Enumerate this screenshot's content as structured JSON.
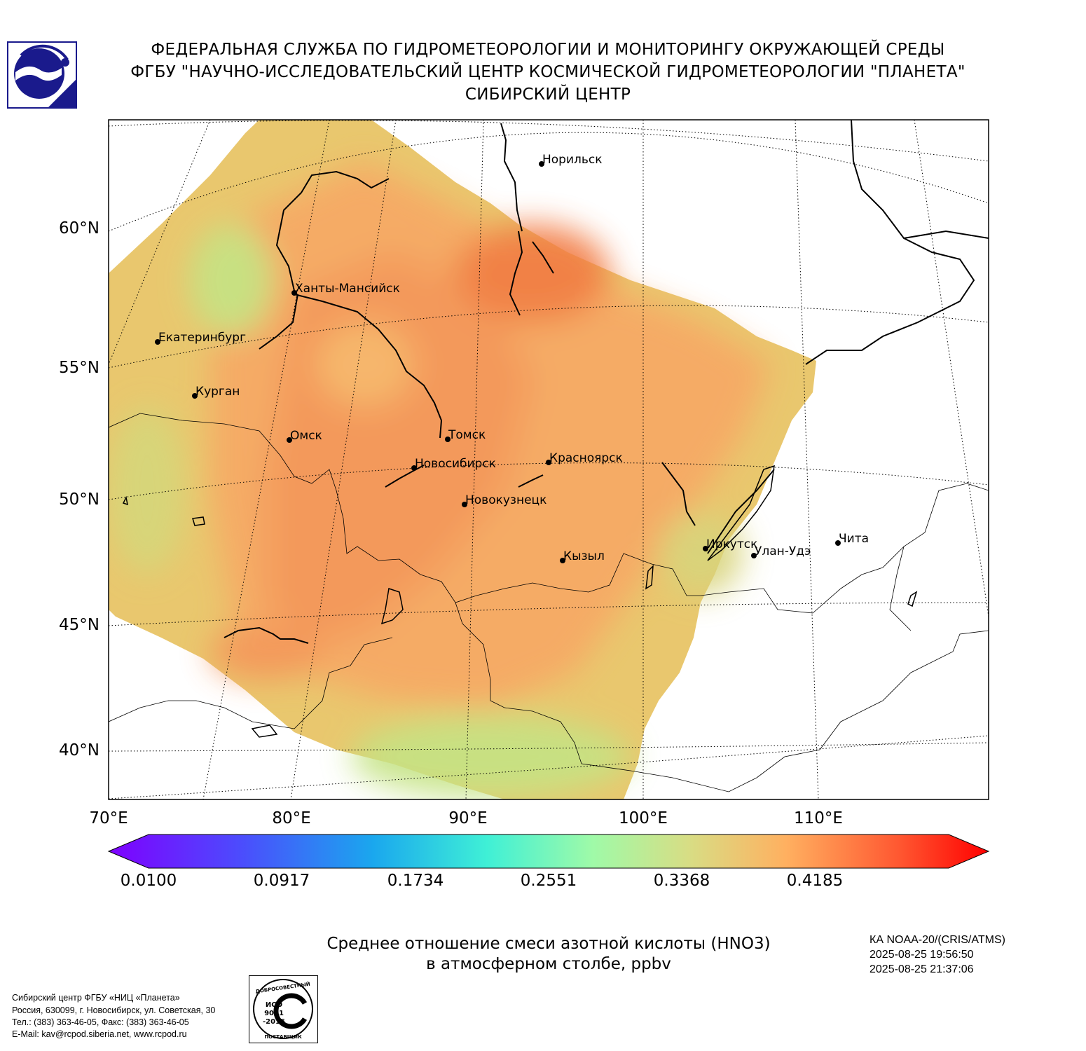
{
  "header": {
    "line1": "ФЕДЕРАЛЬНАЯ СЛУЖБА ПО ГИДРОМЕТЕОРОЛОГИИ И МОНИТОРИНГУ ОКРУЖАЮЩЕЙ СРЕДЫ",
    "line2": "ФГБУ \"НАУЧНО-ИССЛЕДОВАТЕЛЬСКИЙ ЦЕНТР КОСМИЧЕСКОЙ ГИДРОМЕТЕОРОЛОГИИ \"ПЛАНЕТА\"",
    "line3": "СИБИРСКИЙ ЦЕНТР"
  },
  "map": {
    "lat_labels": [
      "60°N",
      "55°N",
      "50°N",
      "45°N",
      "40°N"
    ],
    "lon_labels": [
      "70°E",
      "80°E",
      "90°E",
      "100°E",
      "110°E"
    ],
    "cities": [
      {
        "name": "Норильск"
      },
      {
        "name": "Ханты-Мансийск"
      },
      {
        "name": "Екатеринбург"
      },
      {
        "name": "Курган"
      },
      {
        "name": "Омск"
      },
      {
        "name": "Томск"
      },
      {
        "name": "Новосибирск"
      },
      {
        "name": "Красноярск"
      },
      {
        "name": "Новокузнецк"
      },
      {
        "name": "Иркутск"
      },
      {
        "name": "Кызыл"
      },
      {
        "name": "Улан-Удэ"
      },
      {
        "name": "Чита"
      }
    ],
    "colors": {
      "field_low": "#c5e384",
      "field_mid": "#e8c36c",
      "field_high": "#f5955a",
      "field_peak": "#f27a43"
    }
  },
  "colorbar": {
    "ticks": [
      "0.0100",
      "0.0917",
      "0.1734",
      "0.2551",
      "0.3368",
      "0.4185"
    ]
  },
  "caption": {
    "line1": "Среднее отношение смеси азотной кислоты (HNO3)",
    "line2": "в атмосферном столбе, ppbv"
  },
  "satellite": {
    "line1": "КА NOAA-20/(CRIS/ATMS)",
    "line2": "2025-08-25 19:56:50",
    "line3": "2025-08-25 21:37:06"
  },
  "footer": {
    "line1": "Сибирский центр ФГБУ «НИЦ «Планета»",
    "line2": "Россия, 630099, г. Новосибирск, ул. Советская, 30",
    "line3": "Тел.: (383) 363-46-05, Факс: (383) 363-46-05",
    "line4": "E-Mail: kav@rcpod.siberia.net, www.rcpod.ru"
  },
  "iso_badge": {
    "top_text": "ДОБРОСОВЕСТНЫЙ",
    "bottom_text": "ПОСТАВЩИК",
    "code1": "ИСО",
    "code2": "9001",
    "code3": "-2015"
  }
}
